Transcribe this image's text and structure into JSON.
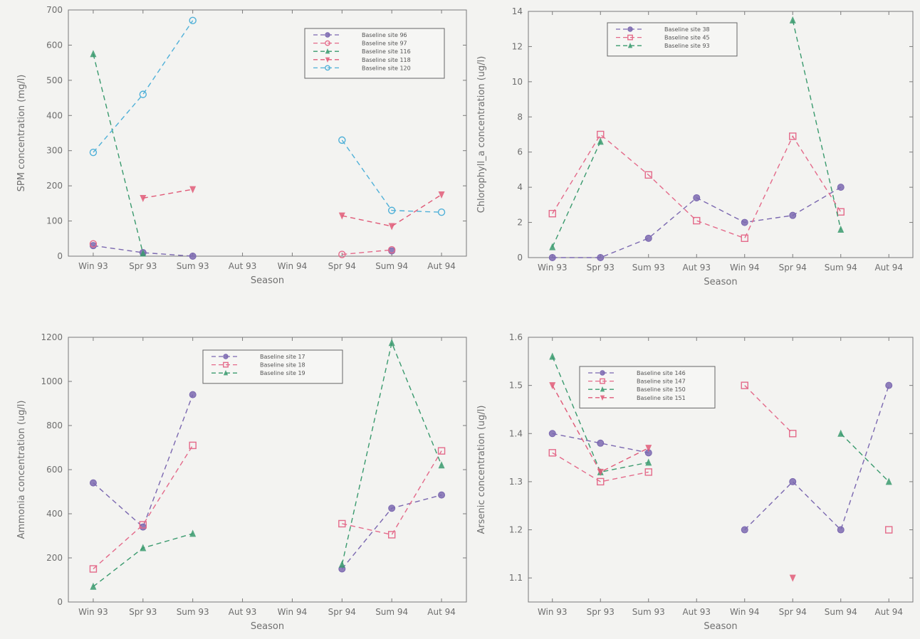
{
  "chart_data": [
    {
      "type": "line",
      "xlabel": "Season",
      "ylabel": "SPM concentration (mg/l)",
      "categories": [
        "Win 93",
        "Spr 93",
        "Sum 93",
        "Aut 93",
        "Win 94",
        "Spr 94",
        "Sum 94",
        "Aut 94"
      ],
      "ylim": [
        0,
        700
      ],
      "yticks": [
        "0",
        "100",
        "200",
        "300",
        "400",
        "500",
        "600",
        "700"
      ],
      "legend_position": "top-right",
      "series": [
        {
          "name": "Baseline site 96",
          "color": "#7b68b0",
          "marker": "circle",
          "values": [
            30,
            10,
            0,
            null,
            null,
            null,
            15,
            null
          ]
        },
        {
          "name": "Baseline site 97",
          "color": "#e46a8a",
          "marker": "circle-open",
          "values": [
            35,
            null,
            null,
            null,
            null,
            5,
            18,
            null
          ]
        },
        {
          "name": "Baseline site 116",
          "color": "#3a9a6e",
          "marker": "triangle",
          "values": [
            575,
            8,
            null,
            null,
            null,
            null,
            null,
            null
          ]
        },
        {
          "name": "Baseline site 118",
          "color": "#e05a78",
          "marker": "triangle-down",
          "values": [
            null,
            165,
            190,
            null,
            null,
            115,
            85,
            175
          ]
        },
        {
          "name": "Baseline site 120",
          "color": "#4fb0d8",
          "marker": "circle-open",
          "values": [
            295,
            460,
            670,
            null,
            null,
            330,
            130,
            125
          ]
        }
      ]
    },
    {
      "type": "line",
      "xlabel": "Season",
      "ylabel": "Chlorophyll_a concentration (ug/l)",
      "categories": [
        "Win 93",
        "Spr 93",
        "Sum 93",
        "Aut 93",
        "Win 94",
        "Spr 94",
        "Sum 94",
        "Aut 94"
      ],
      "ylim": [
        0,
        14
      ],
      "yticks": [
        "0",
        "2",
        "4",
        "6",
        "8",
        "10",
        "12",
        "14"
      ],
      "legend_position": "top-left",
      "series": [
        {
          "name": "Baseline site 38",
          "color": "#7b68b0",
          "marker": "circle",
          "values": [
            0,
            0,
            1.1,
            3.4,
            2.0,
            2.4,
            4.0,
            null
          ]
        },
        {
          "name": "Baseline site 45",
          "color": "#e46a8a",
          "marker": "square-open",
          "values": [
            2.5,
            7.0,
            4.7,
            2.1,
            1.1,
            6.9,
            2.6,
            null
          ]
        },
        {
          "name": "Baseline site 93",
          "color": "#3a9a6e",
          "marker": "triangle",
          "values": [
            0.6,
            6.6,
            null,
            null,
            null,
            13.5,
            1.6,
            null
          ]
        }
      ]
    },
    {
      "type": "line",
      "xlabel": "Season",
      "ylabel": "Ammonia concentration (ug/l)",
      "categories": [
        "Win 93",
        "Spr 93",
        "Sum 93",
        "Aut 93",
        "Win 94",
        "Spr 94",
        "Sum 94",
        "Aut 94"
      ],
      "ylim": [
        0,
        1200
      ],
      "yticks": [
        "0",
        "200",
        "400",
        "600",
        "800",
        "1000",
        "1200"
      ],
      "legend_position": "top-center",
      "series": [
        {
          "name": "Baseline site 17",
          "color": "#7b68b0",
          "marker": "circle",
          "values": [
            540,
            340,
            940,
            null,
            null,
            150,
            425,
            485
          ]
        },
        {
          "name": "Baseline site 18",
          "color": "#e46a8a",
          "marker": "square-open",
          "values": [
            150,
            350,
            710,
            null,
            null,
            355,
            305,
            685
          ]
        },
        {
          "name": "Baseline site 19",
          "color": "#3a9a6e",
          "marker": "triangle",
          "values": [
            70,
            245,
            310,
            null,
            null,
            170,
            1175,
            620
          ]
        }
      ]
    },
    {
      "type": "line",
      "xlabel": "Season",
      "ylabel": "Arsenic concentration (ug/l)",
      "categories": [
        "Win 93",
        "Spr 93",
        "Sum 93",
        "Aut 93",
        "Win 94",
        "Spr 94",
        "Sum 94",
        "Aut 94"
      ],
      "ylim": [
        1.05,
        1.6
      ],
      "yticks": [
        "1.1",
        "1.2",
        "1.3",
        "1.4",
        "1.5",
        "1.6"
      ],
      "ytick_values": [
        1.1,
        1.2,
        1.3,
        1.4,
        1.5,
        1.6
      ],
      "legend_position": "top-left",
      "series": [
        {
          "name": "Baseline site 146",
          "color": "#7b68b0",
          "marker": "circle",
          "values": [
            1.4,
            1.38,
            1.36,
            null,
            1.2,
            1.3,
            1.2,
            1.5
          ]
        },
        {
          "name": "Baseline site 147",
          "color": "#e46a8a",
          "marker": "square-open",
          "values": [
            1.36,
            1.3,
            1.32,
            null,
            1.5,
            1.4,
            null,
            1.2
          ]
        },
        {
          "name": "Baseline site 150",
          "color": "#3a9a6e",
          "marker": "triangle",
          "values": [
            1.56,
            1.32,
            1.34,
            null,
            null,
            null,
            1.4,
            1.3
          ]
        },
        {
          "name": "Baseline site 151",
          "color": "#e05a78",
          "marker": "triangle-down",
          "values": [
            1.5,
            1.32,
            1.37,
            null,
            null,
            1.1,
            null,
            null
          ]
        }
      ]
    }
  ]
}
